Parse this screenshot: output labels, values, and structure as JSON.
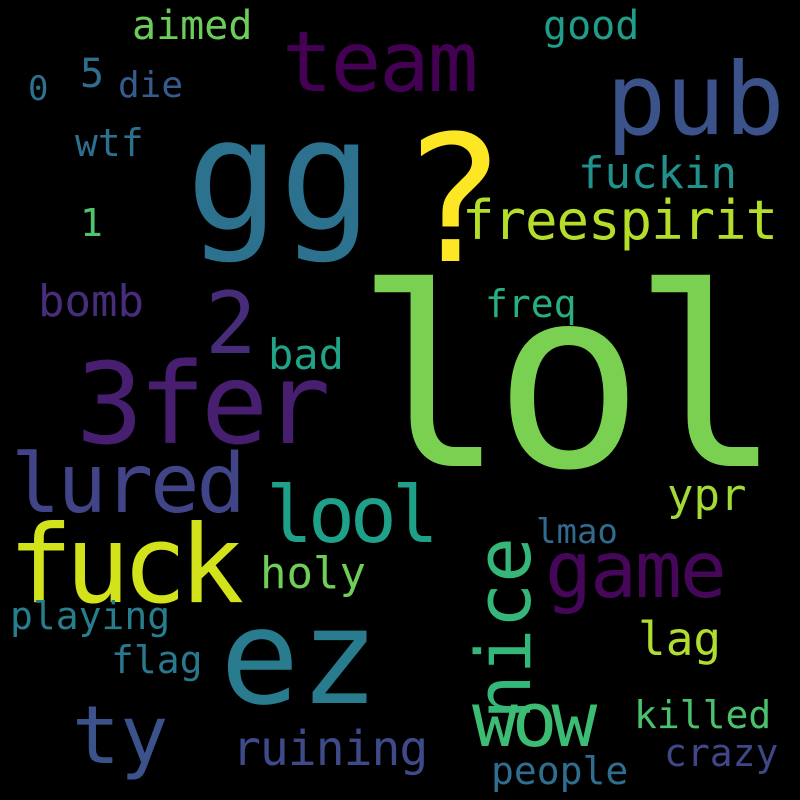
{
  "words": [
    {
      "key": "lol",
      "text": "lol",
      "color": "#7ad151"
    },
    {
      "key": "q",
      "text": "?",
      "color": "#fde725"
    },
    {
      "key": "gg",
      "text": "gg",
      "color": "#2c728e"
    },
    {
      "key": "pub",
      "text": "pub",
      "color": "#3b528b"
    },
    {
      "key": "team",
      "text": "team",
      "color": "#440154"
    },
    {
      "key": "3fer",
      "text": "3fer",
      "color": "#481f70"
    },
    {
      "key": "fuck",
      "text": "fuck",
      "color": "#d2e21b"
    },
    {
      "key": "ez",
      "text": "ez",
      "color": "#287c8e"
    },
    {
      "key": "nice",
      "text": "nice",
      "color": "#35b779"
    },
    {
      "key": "game",
      "text": "game",
      "color": "#46075a"
    },
    {
      "key": "lured",
      "text": "lured",
      "color": "#414487"
    },
    {
      "key": "lool",
      "text": "lool",
      "color": "#1fa088"
    },
    {
      "key": "wow",
      "text": "wow",
      "color": "#3dbc74"
    },
    {
      "key": "ty",
      "text": "ty",
      "color": "#3b528b"
    },
    {
      "key": "freespirit",
      "text": "freespirit",
      "color": "#b5de2b"
    },
    {
      "key": "two",
      "text": "2",
      "color": "#472c7a"
    },
    {
      "key": "fuckin",
      "text": "fuckin",
      "color": "#21918c"
    },
    {
      "key": "ruining",
      "text": "ruining",
      "color": "#3e4a89"
    },
    {
      "key": "aimed",
      "text": "aimed",
      "color": "#6ccd5a"
    },
    {
      "key": "good",
      "text": "good",
      "color": "#1f9e89"
    },
    {
      "key": "bomb",
      "text": "bomb",
      "color": "#472d7b"
    },
    {
      "key": "bad",
      "text": "bad",
      "color": "#20a386"
    },
    {
      "key": "freq",
      "text": "freq",
      "color": "#29af7f"
    },
    {
      "key": "ypr",
      "text": "ypr",
      "color": "#a2da37"
    },
    {
      "key": "holy",
      "text": "holy",
      "color": "#6ece58"
    },
    {
      "key": "lmao",
      "text": "lmao",
      "color": "#306a8e"
    },
    {
      "key": "playing",
      "text": "playing",
      "color": "#277f8e"
    },
    {
      "key": "lag",
      "text": "lag",
      "color": "#b0dd2f"
    },
    {
      "key": "flag",
      "text": "flag",
      "color": "#2a788e"
    },
    {
      "key": "killed",
      "text": "killed",
      "color": "#4ac16d"
    },
    {
      "key": "crazy",
      "text": "crazy",
      "color": "#3f4788"
    },
    {
      "key": "people",
      "text": "people",
      "color": "#2e6e8e"
    },
    {
      "key": "wtf",
      "text": "wtf",
      "color": "#2d708e"
    },
    {
      "key": "die",
      "text": "die",
      "color": "#365c8d"
    },
    {
      "key": "zero",
      "text": "0",
      "color": "#2c728e"
    },
    {
      "key": "five",
      "text": "5",
      "color": "#2f6c8e"
    },
    {
      "key": "one",
      "text": "1",
      "color": "#50c46a"
    }
  ]
}
